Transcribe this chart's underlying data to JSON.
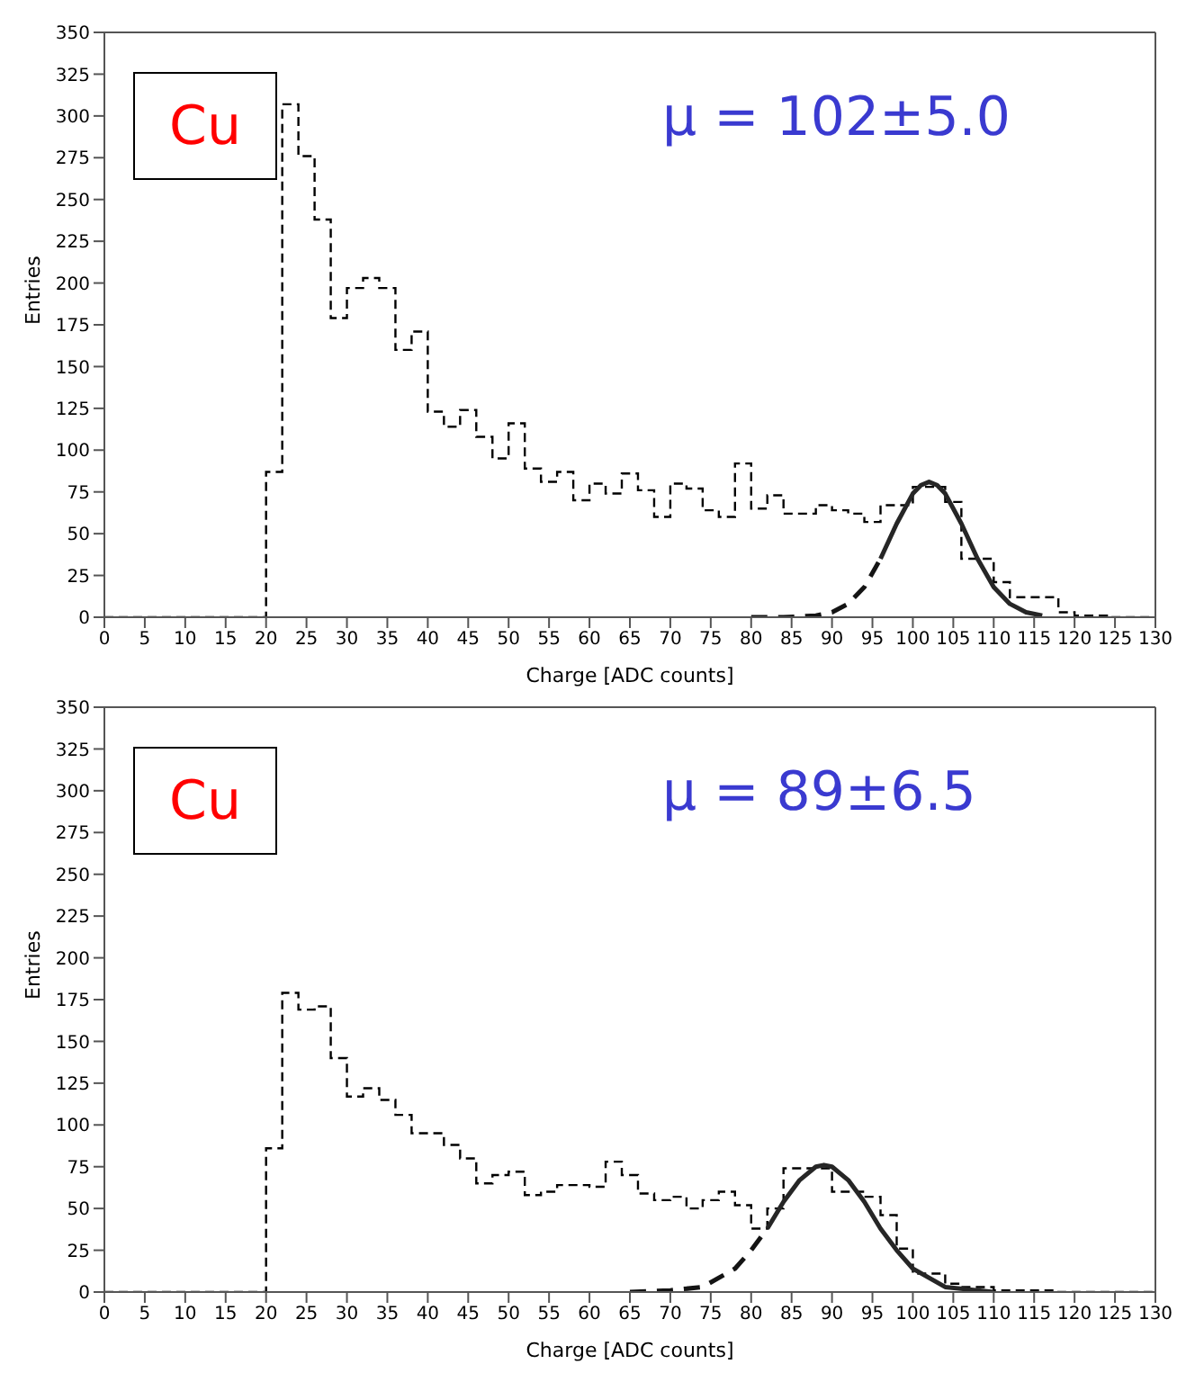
{
  "chart_data": [
    {
      "type": "histogram",
      "xlabel": "Charge [ADC counts]",
      "ylabel": "Entries",
      "xlim": [
        0,
        130
      ],
      "ylim": [
        0,
        350
      ],
      "xticks": [
        0,
        5,
        10,
        15,
        20,
        25,
        30,
        35,
        40,
        45,
        50,
        55,
        60,
        65,
        70,
        75,
        80,
        85,
        90,
        95,
        100,
        105,
        110,
        115,
        120,
        125,
        130
      ],
      "yticks": [
        0,
        25,
        50,
        75,
        100,
        125,
        150,
        175,
        200,
        225,
        250,
        275,
        300,
        325,
        350
      ],
      "annotations": [
        "Cu",
        "μ = 102±5.0"
      ],
      "bins": [
        0,
        2,
        4,
        6,
        8,
        10,
        12,
        14,
        16,
        18,
        20,
        22,
        24,
        26,
        28,
        30,
        32,
        34,
        36,
        38,
        40,
        42,
        44,
        46,
        48,
        50,
        52,
        54,
        56,
        58,
        60,
        62,
        64,
        66,
        68,
        70,
        72,
        74,
        76,
        78,
        80,
        82,
        84,
        86,
        88,
        90,
        92,
        94,
        96,
        98,
        100,
        102,
        104,
        106,
        108,
        110,
        112,
        114,
        116,
        118,
        120,
        122,
        124,
        126,
        128,
        130
      ],
      "series": [
        {
          "type": "histogram",
          "color": "#000000",
          "line_style": "dashed",
          "values": [
            0,
            0,
            0,
            0,
            0,
            0,
            0,
            0,
            0,
            0,
            87,
            307,
            276,
            238,
            179,
            197,
            203,
            197,
            160,
            171,
            123,
            114,
            124,
            108,
            95,
            116,
            89,
            81,
            87,
            70,
            80,
            74,
            86,
            76,
            60,
            80,
            77,
            64,
            60,
            92,
            65,
            73,
            62,
            62,
            67,
            64,
            62,
            57,
            67,
            67,
            78,
            78,
            69,
            35,
            35,
            21,
            12,
            12,
            12,
            3,
            1,
            1,
            0,
            0,
            0
          ]
        },
        {
          "type": "line",
          "color": "#141414",
          "line_style": "dashed",
          "x": [
            80,
            84,
            88,
            90,
            92,
            94,
            96
          ],
          "values": [
            0,
            0,
            1,
            3,
            8,
            18,
            35
          ]
        },
        {
          "type": "line",
          "color": "#262626",
          "line_style": "solid",
          "x": [
            96,
            98,
            100,
            101,
            102,
            103,
            104,
            106,
            108,
            110,
            112,
            114,
            116
          ],
          "values": [
            35,
            56,
            74,
            79,
            81,
            79,
            74,
            56,
            35,
            18,
            8,
            3,
            1
          ]
        }
      ]
    },
    {
      "type": "histogram",
      "xlabel": "Charge [ADC counts]",
      "ylabel": "Entries",
      "xlim": [
        0,
        130
      ],
      "ylim": [
        0,
        350
      ],
      "xticks": [
        0,
        5,
        10,
        15,
        20,
        25,
        30,
        35,
        40,
        45,
        50,
        55,
        60,
        65,
        70,
        75,
        80,
        85,
        90,
        95,
        100,
        105,
        110,
        115,
        120,
        125,
        130
      ],
      "yticks": [
        0,
        25,
        50,
        75,
        100,
        125,
        150,
        175,
        200,
        225,
        250,
        275,
        300,
        325,
        350
      ],
      "annotations": [
        "Cu",
        "μ = 89±6.5"
      ],
      "bins": [
        0,
        2,
        4,
        6,
        8,
        10,
        12,
        14,
        16,
        18,
        20,
        22,
        24,
        26,
        28,
        30,
        32,
        34,
        36,
        38,
        40,
        42,
        44,
        46,
        48,
        50,
        52,
        54,
        56,
        58,
        60,
        62,
        64,
        66,
        68,
        70,
        72,
        74,
        76,
        78,
        80,
        82,
        84,
        86,
        88,
        90,
        92,
        94,
        96,
        98,
        100,
        102,
        104,
        106,
        108,
        110,
        112,
        114,
        116,
        118,
        120,
        122,
        124,
        126,
        128,
        130
      ],
      "series": [
        {
          "type": "histogram",
          "color": "#000000",
          "line_style": "dashed",
          "values": [
            0,
            0,
            0,
            0,
            0,
            0,
            0,
            0,
            0,
            0,
            86,
            179,
            169,
            171,
            140,
            117,
            122,
            115,
            106,
            95,
            95,
            88,
            80,
            65,
            70,
            72,
            58,
            60,
            64,
            64,
            63,
            78,
            70,
            59,
            55,
            57,
            50,
            55,
            60,
            52,
            38,
            50,
            74,
            74,
            74,
            60,
            60,
            57,
            46,
            26,
            11,
            11,
            5,
            3,
            3,
            1,
            1,
            1,
            1,
            0,
            0,
            0,
            0,
            0,
            0
          ]
        },
        {
          "type": "line",
          "color": "#141414",
          "line_style": "dashed",
          "x": [
            65,
            70,
            74,
            78,
            80,
            82
          ],
          "values": [
            0,
            1,
            3,
            14,
            25,
            38
          ]
        },
        {
          "type": "line",
          "color": "#262626",
          "line_style": "solid",
          "x": [
            82,
            84,
            86,
            88,
            89,
            90,
            92,
            94,
            96,
            98,
            100,
            104,
            108,
            110
          ],
          "values": [
            38,
            54,
            67,
            75,
            76,
            75,
            67,
            54,
            38,
            25,
            14,
            3,
            1,
            0
          ]
        }
      ]
    }
  ]
}
